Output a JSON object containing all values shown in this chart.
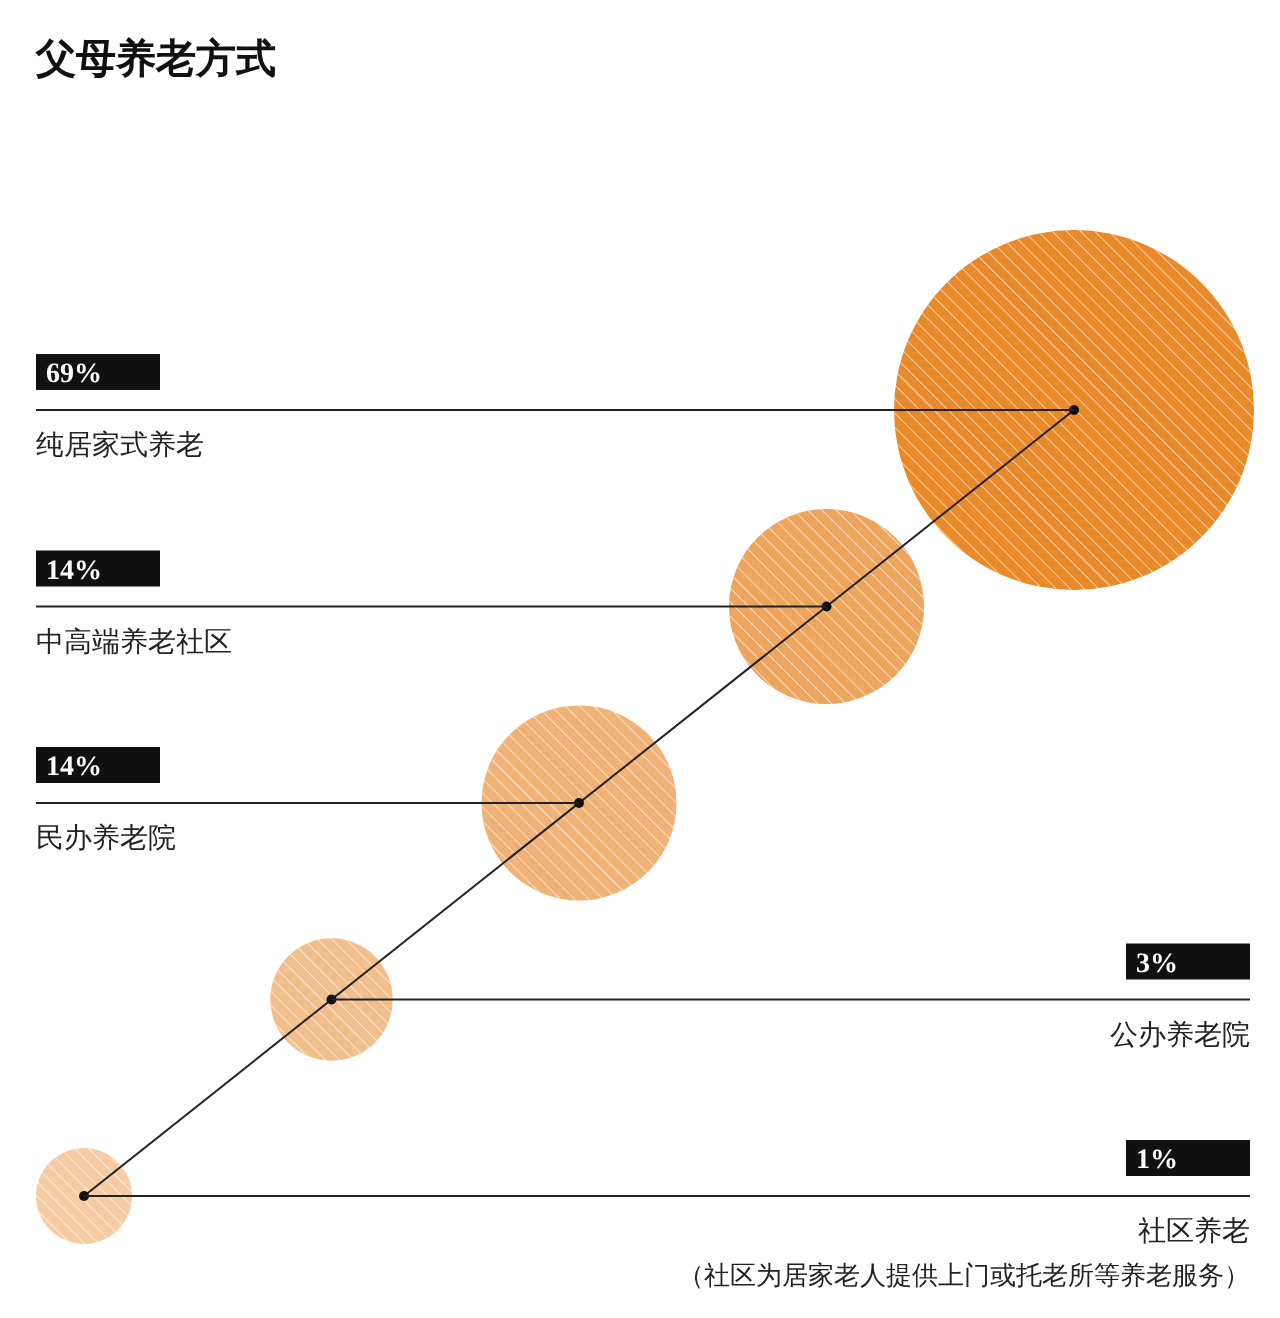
{
  "chart_data": {
    "type": "other",
    "title": "父母养老方式",
    "categories": [
      "纯居家式养老",
      "中高端养老社区",
      "民办养老院",
      "公办养老院",
      "社区养老"
    ],
    "values": [
      69,
      14,
      14,
      3,
      1
    ],
    "value_labels": [
      "69%",
      "14%",
      "14%",
      "3%",
      "1%"
    ],
    "colors": [
      "#e8892a",
      "#eda55e",
      "#f0b276",
      "#f2bf8c",
      "#f5cca3"
    ],
    "annotations": [
      "（社区为居家老人提供上门或托老所等养老服务）"
    ]
  }
}
